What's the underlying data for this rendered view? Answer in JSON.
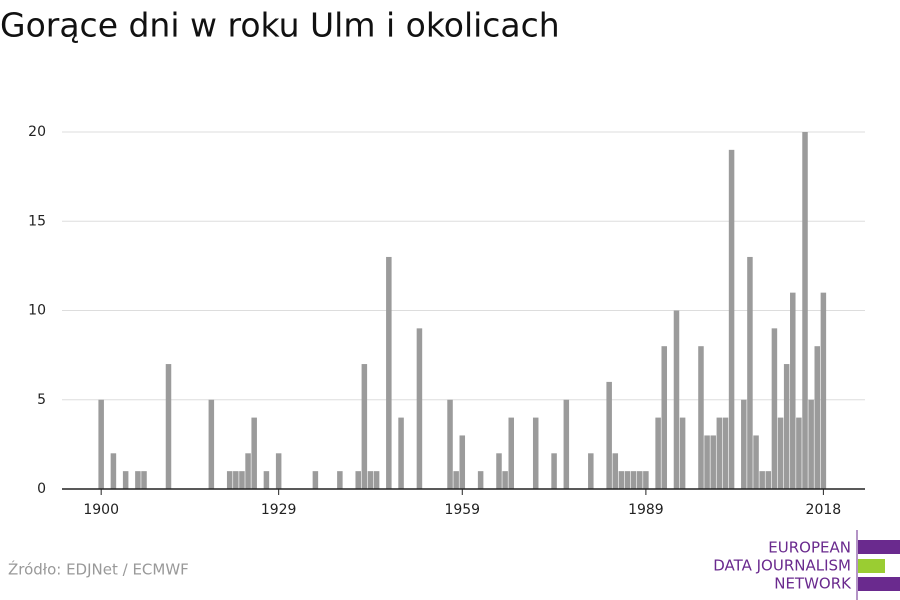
{
  "chart_data": {
    "type": "bar",
    "title": "Gorące dni w roku Ulm i okolicach",
    "x": [
      1900,
      1902,
      1904,
      1906,
      1907,
      1911,
      1918,
      1921,
      1922,
      1923,
      1924,
      1925,
      1927,
      1929,
      1935,
      1939,
      1942,
      1943,
      1944,
      1945,
      1947,
      1949,
      1952,
      1957,
      1958,
      1959,
      1962,
      1965,
      1966,
      1967,
      1971,
      1974,
      1976,
      1980,
      1983,
      1984,
      1985,
      1986,
      1987,
      1988,
      1989,
      1991,
      1992,
      1994,
      1995,
      1998,
      1999,
      2000,
      2001,
      2002,
      2003,
      2005,
      2006,
      2007,
      2008,
      2009,
      2010,
      2011,
      2012,
      2013,
      2014,
      2015,
      2016,
      2017,
      2018
    ],
    "values": [
      5,
      2,
      1,
      1,
      1,
      7,
      5,
      1,
      1,
      1,
      2,
      4,
      1,
      2,
      1,
      1,
      1,
      7,
      1,
      1,
      13,
      4,
      9,
      5,
      1,
      3,
      1,
      2,
      1,
      4,
      4,
      2,
      5,
      2,
      6,
      2,
      1,
      1,
      1,
      1,
      1,
      4,
      8,
      10,
      4,
      8,
      3,
      3,
      4,
      4,
      19,
      5,
      13,
      3,
      1,
      1,
      9,
      4,
      7,
      11,
      4,
      20,
      5,
      8,
      11
    ],
    "color": "#9b9b9b",
    "xlim": [
      1893.6,
      2024.8
    ],
    "xticks": [
      1900,
      1929,
      1959,
      1989,
      2018
    ],
    "ylim": [
      0,
      20
    ],
    "yticks": [
      0,
      5,
      10,
      15,
      20
    ],
    "grid": true,
    "source": "Źródło: EDJNet / ECMWF",
    "logo": [
      "EUROPEAN",
      "DATA JOURNALISM",
      "NETWORK"
    ]
  }
}
